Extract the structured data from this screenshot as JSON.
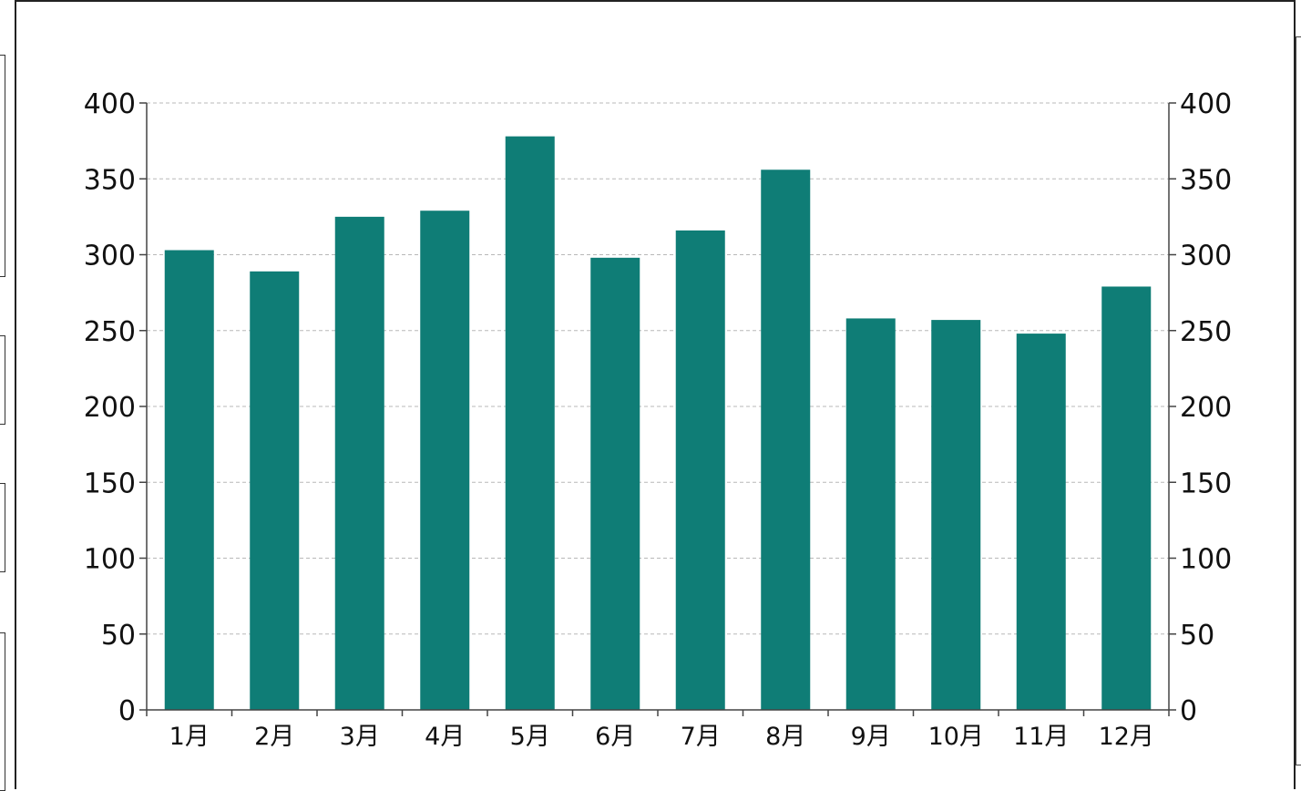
{
  "chart_data": {
    "type": "bar",
    "categories": [
      "1月",
      "2月",
      "3月",
      "4月",
      "5月",
      "6月",
      "7月",
      "8月",
      "9月",
      "10月",
      "11月",
      "12月"
    ],
    "values": [
      303,
      289,
      325,
      329,
      378,
      298,
      316,
      356,
      258,
      257,
      248,
      279
    ],
    "ylim": [
      0,
      400
    ],
    "yticks": [
      0,
      50,
      100,
      150,
      200,
      250,
      300,
      350,
      400
    ],
    "y_axis_both_sides": true,
    "grid": "horizontal-dashed",
    "legend": "none",
    "bar_color": "#0f7d76",
    "grid_color": "#b8b8b8",
    "axis_color": "#444444"
  }
}
